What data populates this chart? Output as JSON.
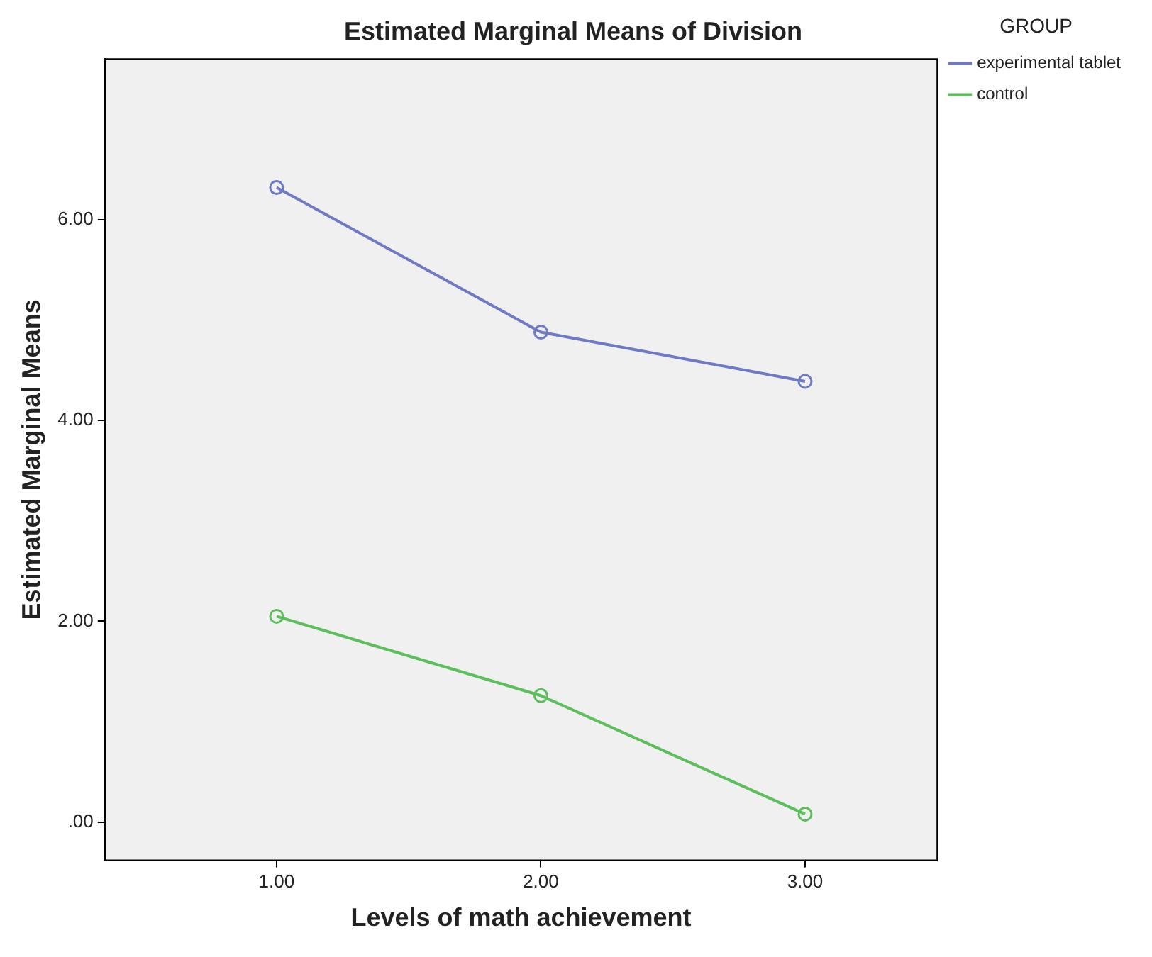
{
  "chart_data": {
    "type": "line",
    "title": "Estimated Marginal Means of Division",
    "xlabel": "Levels of math achievement",
    "ylabel": "Estimated Marginal Means",
    "legend_title": "GROUP",
    "x": [
      1,
      2,
      3
    ],
    "series": [
      {
        "name": "experimental tablet",
        "color": "#6f7ac4",
        "values": [
          6.32,
          4.88,
          4.39
        ]
      },
      {
        "name": "control",
        "color": "#5cbf5c",
        "values": [
          2.05,
          1.26,
          0.08
        ]
      }
    ],
    "xlim": [
      0.35,
      3.5
    ],
    "xticks": [
      {
        "value": 1,
        "label": "1.00"
      },
      {
        "value": 2,
        "label": "2.00"
      },
      {
        "value": 3,
        "label": "3.00"
      }
    ],
    "ylim": [
      -0.38,
      7.6
    ],
    "yticks": [
      {
        "value": 0,
        "label": ".00"
      },
      {
        "value": 2,
        "label": "2.00"
      },
      {
        "value": 4,
        "label": "4.00"
      },
      {
        "value": 6,
        "label": "6.00"
      }
    ],
    "grid": false,
    "legend": "top right",
    "marker": "circle",
    "line_style": "solid"
  }
}
